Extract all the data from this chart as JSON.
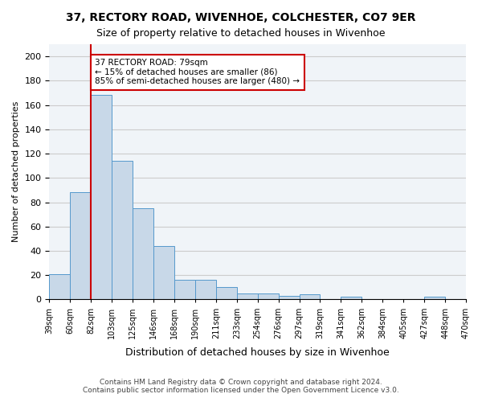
{
  "title1": "37, RECTORY ROAD, WIVENHOE, COLCHESTER, CO7 9ER",
  "title2": "Size of property relative to detached houses in Wivenhoe",
  "xlabel": "Distribution of detached houses by size in Wivenhoe",
  "ylabel": "Number of detached properties",
  "bar_color": "#c8d8e8",
  "bar_edge_color": "#5599cc",
  "bins": [
    "39sqm",
    "60sqm",
    "82sqm",
    "103sqm",
    "125sqm",
    "146sqm",
    "168sqm",
    "190sqm",
    "211sqm",
    "233sqm",
    "254sqm",
    "276sqm",
    "297sqm",
    "319sqm",
    "341sqm",
    "362sqm",
    "384sqm",
    "405sqm",
    "427sqm",
    "448sqm",
    "470sqm"
  ],
  "values": [
    21,
    88,
    168,
    114,
    75,
    44,
    16,
    16,
    10,
    5,
    5,
    3,
    4,
    0,
    2,
    0,
    0,
    0,
    2,
    0
  ],
  "ylim": [
    0,
    210
  ],
  "yticks": [
    0,
    20,
    40,
    60,
    80,
    100,
    120,
    140,
    160,
    180,
    200
  ],
  "property_line_x": 2,
  "property_line_color": "#cc0000",
  "annotation_text": "37 RECTORY ROAD: 79sqm\n← 15% of detached houses are smaller (86)\n85% of semi-detached houses are larger (480) →",
  "annotation_box_color": "#ffffff",
  "annotation_box_edge": "#cc0000",
  "footer1": "Contains HM Land Registry data © Crown copyright and database right 2024.",
  "footer2": "Contains public sector information licensed under the Open Government Licence v3.0.",
  "background_color": "#f0f4f8",
  "grid_color": "#cccccc"
}
